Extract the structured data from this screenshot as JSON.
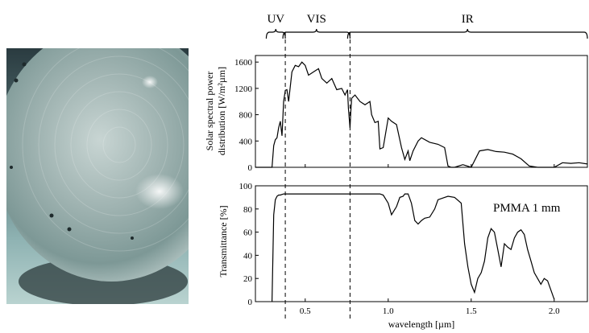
{
  "photo": {
    "description_icon": "fresnel-lens-photo"
  },
  "bands": [
    {
      "label": "UV",
      "from": 0.28,
      "to": 0.38
    },
    {
      "label": "VIS",
      "from": 0.38,
      "to": 0.77
    },
    {
      "label": "IR",
      "from": 0.77,
      "to": 2.2
    }
  ],
  "boundaries": [
    0.38,
    0.77
  ],
  "chart_data": [
    {
      "type": "line",
      "ylabel_lines": [
        "Solar spectral power",
        "distribution  [W/m²µm]"
      ],
      "xlim": [
        0.2,
        2.2
      ],
      "ylim": [
        0,
        1700
      ],
      "yticks": [
        0,
        400,
        800,
        1200,
        1600
      ],
      "grid": false,
      "series": [
        {
          "x": [
            0.2,
            0.3,
            0.31,
            0.32,
            0.33,
            0.34,
            0.35,
            0.36,
            0.37,
            0.38,
            0.39,
            0.4,
            0.42,
            0.44,
            0.46,
            0.48,
            0.5,
            0.52,
            0.55,
            0.58,
            0.6,
            0.63,
            0.66,
            0.69,
            0.72,
            0.74,
            0.755,
            0.76,
            0.77,
            0.775,
            0.78,
            0.8,
            0.83,
            0.86,
            0.89,
            0.9,
            0.92,
            0.94,
            0.95,
            0.97,
            1.0,
            1.02,
            1.05,
            1.08,
            1.1,
            1.12,
            1.13,
            1.15,
            1.18,
            1.2,
            1.25,
            1.3,
            1.34,
            1.36,
            1.38,
            1.4,
            1.45,
            1.5,
            1.55,
            1.6,
            1.65,
            1.7,
            1.75,
            1.8,
            1.85,
            1.9,
            1.95,
            2.0,
            2.05,
            2.1,
            2.15,
            2.2
          ],
          "y": [
            0,
            0,
            330,
            420,
            450,
            600,
            700,
            480,
            1000,
            1170,
            1180,
            1000,
            1450,
            1550,
            1530,
            1600,
            1550,
            1400,
            1450,
            1500,
            1350,
            1280,
            1350,
            1180,
            1200,
            1100,
            1180,
            900,
            600,
            850,
            1050,
            1100,
            1000,
            950,
            1000,
            800,
            680,
            700,
            280,
            300,
            750,
            700,
            650,
            300,
            120,
            250,
            100,
            250,
            400,
            450,
            380,
            350,
            300,
            20,
            0,
            0,
            40,
            0,
            250,
            270,
            240,
            230,
            200,
            130,
            20,
            0,
            0,
            0,
            70,
            60,
            70,
            50
          ]
        }
      ]
    },
    {
      "type": "line",
      "xlabel": "wavelength [µm]",
      "ylabel": "Transmittance [%]",
      "xlim": [
        0.2,
        2.2
      ],
      "ylim": [
        0,
        100
      ],
      "yticks": [
        0,
        20,
        40,
        60,
        80,
        100
      ],
      "xticks": [
        0.5,
        1.0,
        1.5,
        2.0
      ],
      "xticklabels": [
        "0.5",
        "1.0",
        "1.5",
        "2.0"
      ],
      "annotation": "PMMA 1 mm",
      "grid": false,
      "series": [
        {
          "x": [
            0.3,
            0.31,
            0.32,
            0.33,
            0.34,
            0.35,
            0.37,
            0.4,
            0.5,
            0.7,
            0.85,
            0.9,
            0.95,
            0.97,
            1.0,
            1.02,
            1.05,
            1.07,
            1.09,
            1.1,
            1.12,
            1.14,
            1.16,
            1.18,
            1.2,
            1.22,
            1.25,
            1.28,
            1.3,
            1.34,
            1.36,
            1.4,
            1.44,
            1.46,
            1.48,
            1.5,
            1.52,
            1.54,
            1.56,
            1.58,
            1.6,
            1.62,
            1.64,
            1.66,
            1.68,
            1.7,
            1.72,
            1.74,
            1.76,
            1.78,
            1.8,
            1.82,
            1.84,
            1.86,
            1.88,
            1.9,
            1.92,
            1.94,
            1.96,
            1.98,
            2.0
          ],
          "y": [
            0,
            75,
            88,
            91,
            92,
            92,
            93,
            93,
            93,
            93,
            93,
            93,
            93,
            92,
            85,
            75,
            82,
            90,
            91,
            93,
            93,
            85,
            70,
            67,
            70,
            72,
            73,
            80,
            88,
            90,
            91,
            90,
            85,
            50,
            30,
            15,
            8,
            20,
            25,
            35,
            55,
            63,
            60,
            45,
            30,
            50,
            47,
            45,
            55,
            60,
            62,
            58,
            45,
            35,
            25,
            20,
            15,
            20,
            18,
            10,
            2
          ]
        }
      ]
    }
  ]
}
